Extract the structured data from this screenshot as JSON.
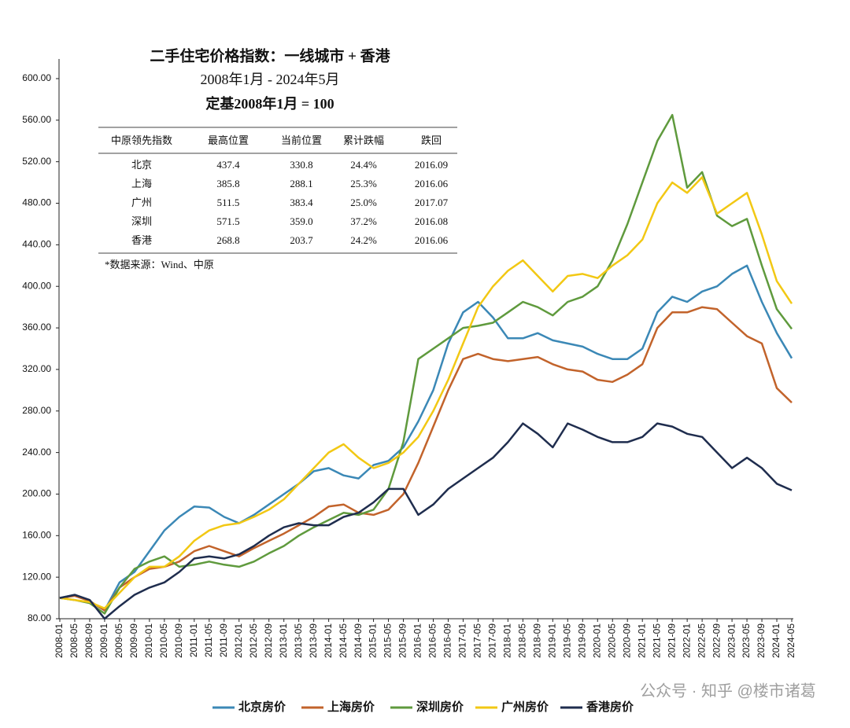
{
  "chart_data": {
    "type": "line",
    "title": "二手住宅价格指数：一线城市 + 香港",
    "subtitle": [
      "2008年1月 - 2024年5月",
      "定基2008年1月 = 100"
    ],
    "table": {
      "columns": [
        "中原领先指数",
        "最高位置",
        "当前位置",
        "累计跌幅",
        "跌回"
      ],
      "rows": [
        [
          "北京",
          "437.4",
          "330.8",
          "24.4%",
          "2016.09"
        ],
        [
          "上海",
          "385.8",
          "288.1",
          "25.3%",
          "2016.06"
        ],
        [
          "广州",
          "511.5",
          "383.4",
          "25.0%",
          "2017.07"
        ],
        [
          "深圳",
          "571.5",
          "359.0",
          "37.2%",
          "2016.08"
        ],
        [
          "香港",
          "268.8",
          "203.7",
          "24.2%",
          "2016.06"
        ]
      ]
    },
    "source": "*数据来源：Wind、中原",
    "watermark": "公众号 · 知乎 @楼市诸葛",
    "categories": [
      "2008-01",
      "2008-05",
      "2008-09",
      "2009-01",
      "2009-05",
      "2009-09",
      "2010-01",
      "2010-05",
      "2010-09",
      "2011-01",
      "2011-05",
      "2011-09",
      "2012-01",
      "2012-05",
      "2012-09",
      "2013-01",
      "2013-05",
      "2013-09",
      "2014-01",
      "2014-05",
      "2014-09",
      "2015-01",
      "2015-05",
      "2015-09",
      "2016-01",
      "2016-05",
      "2016-09",
      "2017-01",
      "2017-05",
      "2017-09",
      "2018-01",
      "2018-05",
      "2018-09",
      "2019-01",
      "2019-05",
      "2019-09",
      "2020-01",
      "2020-05",
      "2020-09",
      "2021-01",
      "2021-05",
      "2021-09",
      "2022-01",
      "2022-05",
      "2022-09",
      "2023-01",
      "2023-05",
      "2023-09",
      "2024-01",
      "2024-05"
    ],
    "series": [
      {
        "name": "北京房价",
        "color": "#3b88b6",
        "values": [
          100,
          103,
          97,
          88,
          115,
          125,
          145,
          165,
          178,
          188,
          187,
          178,
          172,
          180,
          190,
          200,
          210,
          222,
          225,
          218,
          215,
          228,
          232,
          245,
          270,
          300,
          345,
          375,
          385,
          370,
          350,
          350,
          355,
          348,
          345,
          342,
          335,
          330,
          330,
          340,
          375,
          390,
          385,
          395,
          400,
          412,
          420,
          385,
          355,
          330.8
        ]
      },
      {
        "name": "上海房价",
        "color": "#c2632b",
        "values": [
          100,
          102,
          97,
          88,
          110,
          120,
          128,
          130,
          135,
          145,
          150,
          145,
          140,
          148,
          155,
          162,
          170,
          178,
          188,
          190,
          182,
          180,
          185,
          200,
          230,
          265,
          300,
          330,
          335,
          330,
          328,
          330,
          332,
          325,
          320,
          318,
          310,
          308,
          315,
          325,
          360,
          375,
          375,
          380,
          378,
          365,
          352,
          345,
          302,
          288.1
        ]
      },
      {
        "name": "深圳房价",
        "color": "#5f9a3d",
        "values": [
          100,
          98,
          95,
          85,
          110,
          128,
          135,
          140,
          130,
          132,
          135,
          132,
          130,
          135,
          143,
          150,
          160,
          168,
          175,
          182,
          180,
          185,
          205,
          250,
          330,
          340,
          350,
          360,
          362,
          365,
          375,
          385,
          380,
          372,
          385,
          390,
          400,
          425,
          460,
          500,
          540,
          565,
          495,
          510,
          468,
          458,
          465,
          420,
          378,
          359
        ]
      },
      {
        "name": "广州房价",
        "color": "#f2c814",
        "values": [
          100,
          98,
          96,
          90,
          105,
          120,
          130,
          130,
          140,
          155,
          165,
          170,
          172,
          178,
          185,
          195,
          210,
          225,
          240,
          248,
          235,
          225,
          230,
          240,
          255,
          280,
          310,
          345,
          380,
          400,
          415,
          425,
          410,
          395,
          410,
          412,
          408,
          420,
          430,
          445,
          480,
          500,
          490,
          505,
          470,
          480,
          490,
          450,
          405,
          383.4
        ]
      },
      {
        "name": "香港房价",
        "color": "#1f2d4e",
        "values": [
          100,
          103,
          98,
          80,
          92,
          103,
          110,
          115,
          125,
          138,
          140,
          138,
          142,
          150,
          160,
          168,
          172,
          170,
          170,
          178,
          182,
          192,
          205,
          205,
          180,
          190,
          205,
          215,
          225,
          235,
          250,
          268,
          258,
          245,
          268,
          262,
          255,
          250,
          250,
          255,
          268,
          265,
          258,
          255,
          240,
          225,
          235,
          225,
          210,
          203.7
        ]
      }
    ],
    "ylim": [
      80,
      600
    ],
    "yticks": [
      {
        "value": 80,
        "label": "80.00"
      },
      {
        "value": 120,
        "label": "120.00"
      },
      {
        "value": 160,
        "label": "160.00"
      },
      {
        "value": 200,
        "label": "200.00"
      },
      {
        "value": 240,
        "label": "240.00"
      },
      {
        "value": 280,
        "label": "280.00"
      },
      {
        "value": 320,
        "label": "320.00"
      },
      {
        "value": 360,
        "label": "360.00"
      },
      {
        "value": 400,
        "label": "400.00"
      },
      {
        "value": 440,
        "label": "440.00"
      },
      {
        "value": 480,
        "label": "480.00"
      },
      {
        "value": 520,
        "label": "520.00"
      },
      {
        "value": 560,
        "label": "560.00"
      },
      {
        "value": 600,
        "label": "600.00"
      }
    ],
    "grid": false,
    "legend": "bottom"
  }
}
